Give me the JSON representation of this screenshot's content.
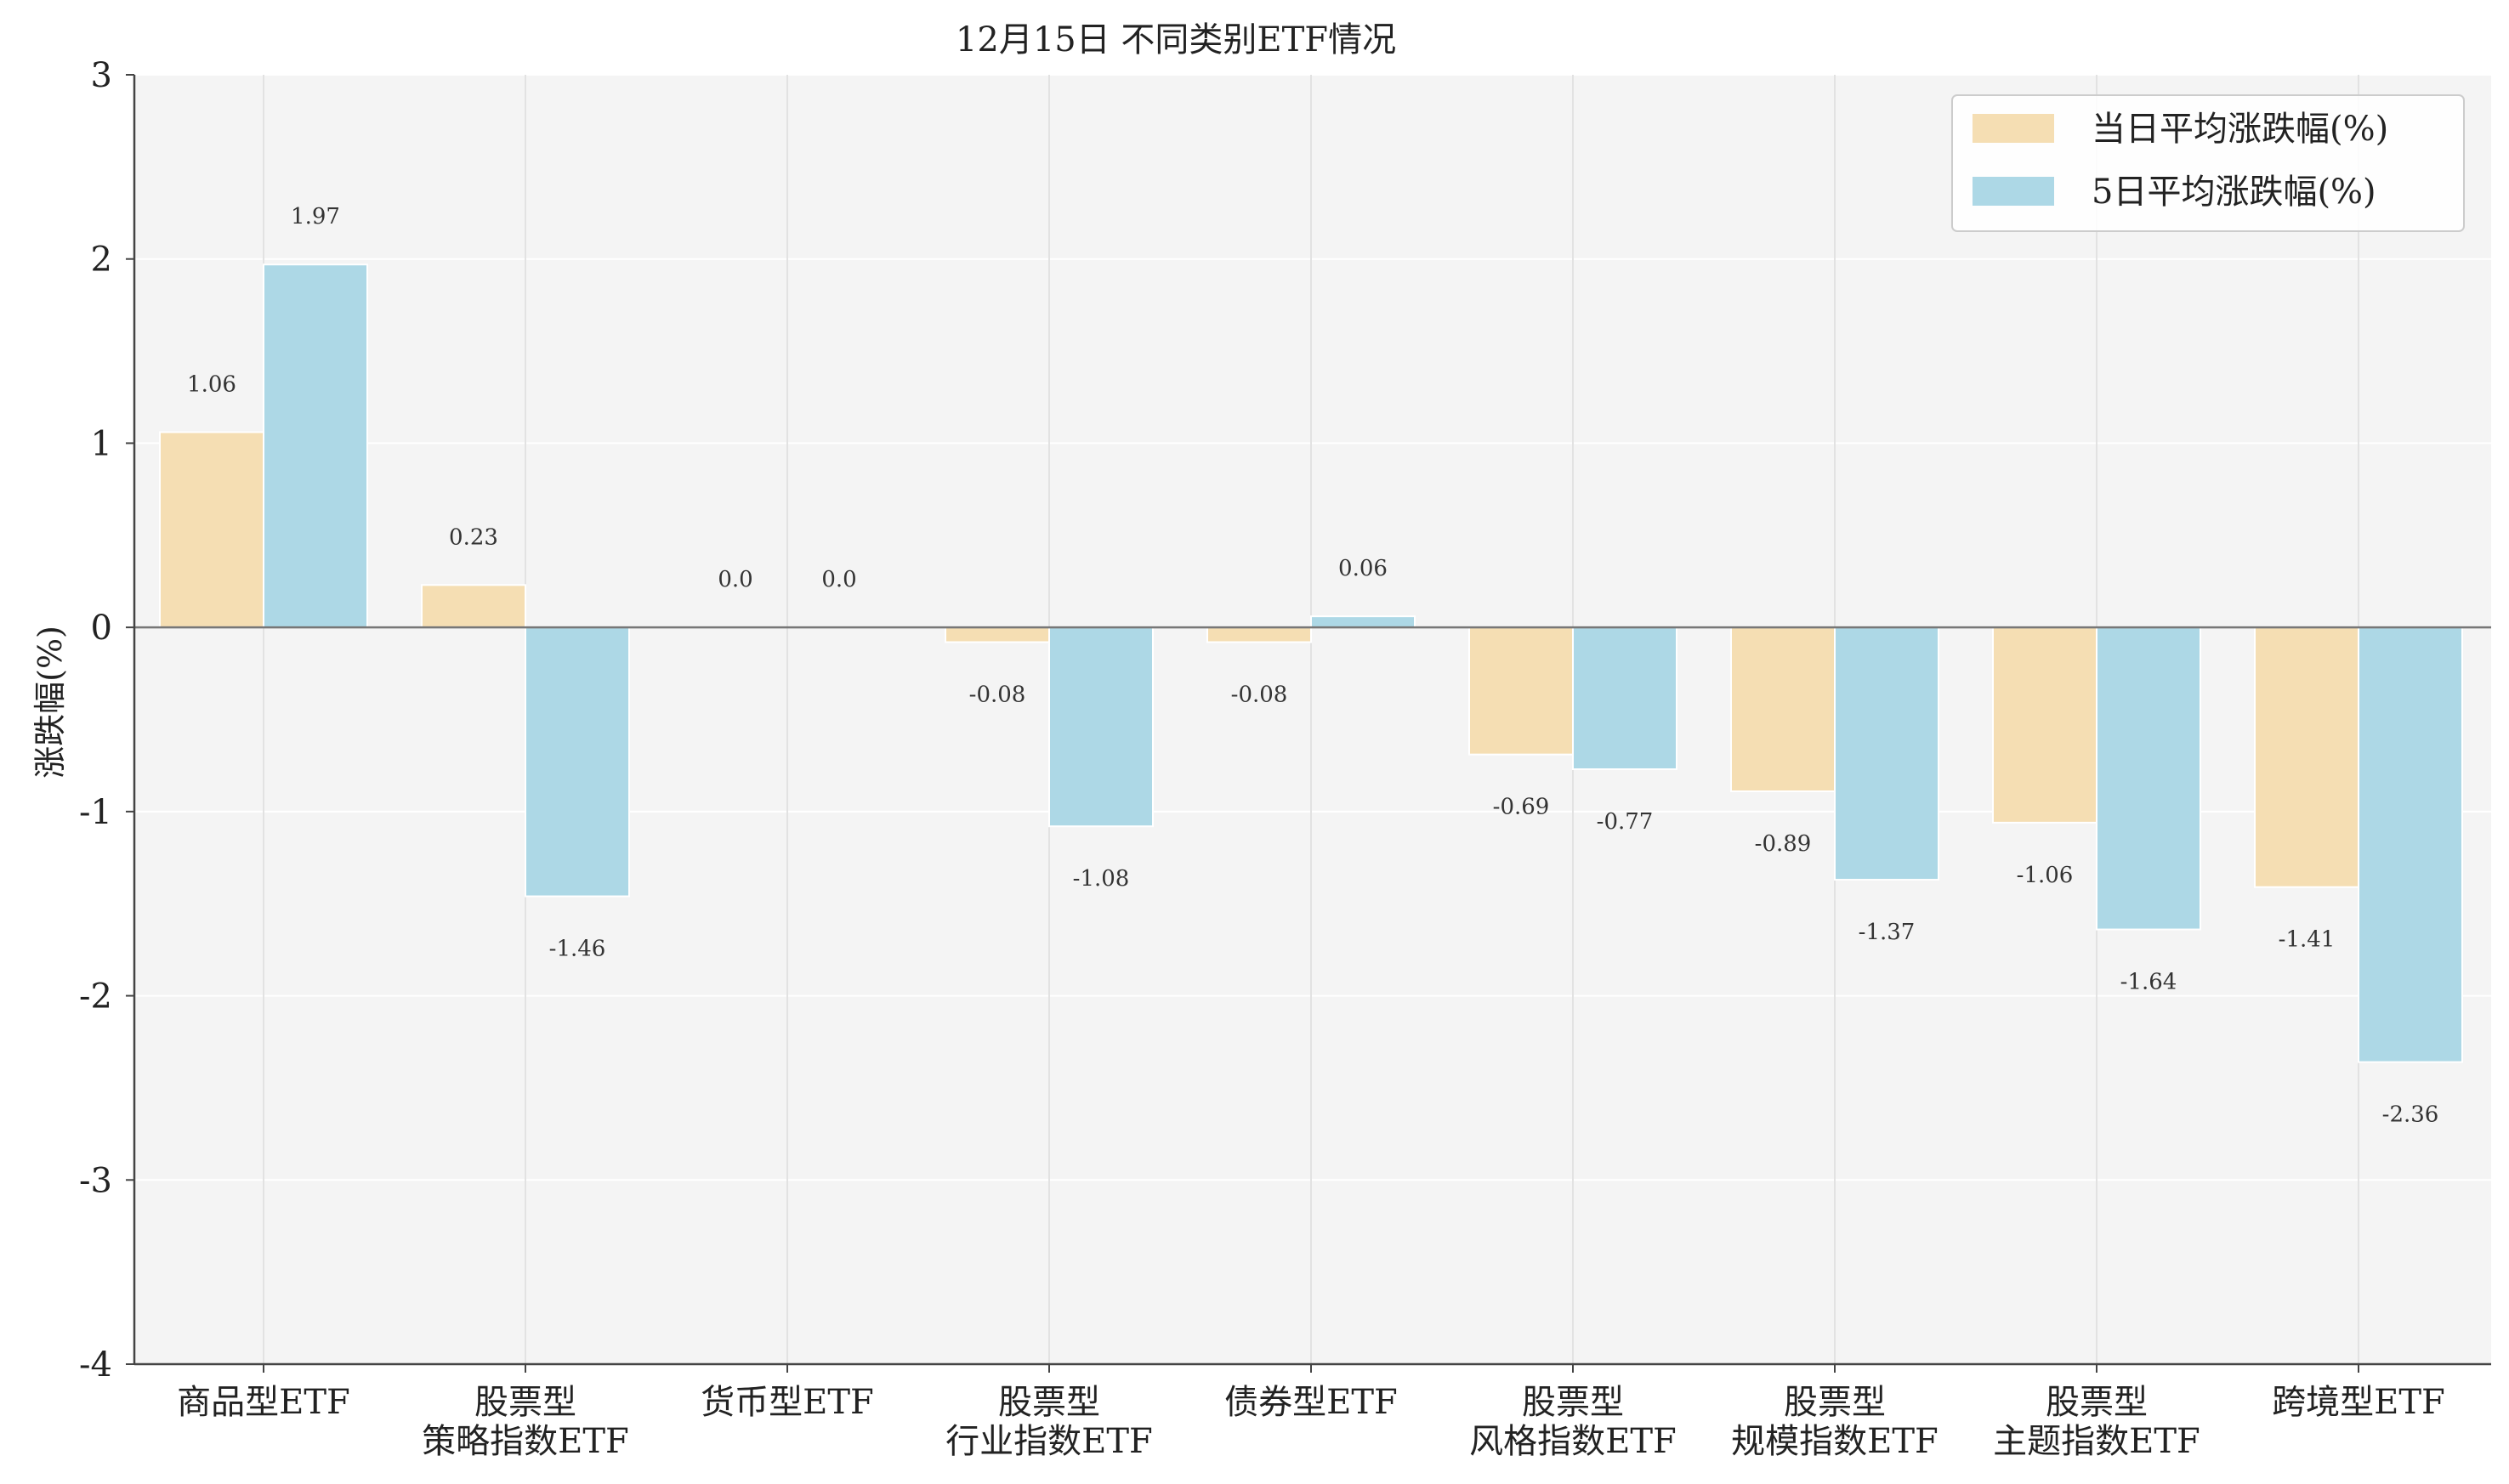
{
  "chart_data": {
    "type": "bar",
    "title": "12月15日 不同类别ETF情况",
    "xlabel": "",
    "ylabel": "涨跌幅(%)",
    "ylim": [
      -4,
      3
    ],
    "yticks": [
      "3",
      "2",
      "1",
      "0",
      "-1",
      "-2",
      "-3",
      "-4"
    ],
    "grid": true,
    "legend_position": "top-right",
    "categories": [
      [
        "商品型ETF"
      ],
      [
        "股票型",
        "策略指数ETF"
      ],
      [
        "货币型ETF"
      ],
      [
        "股票型",
        "行业指数ETF"
      ],
      [
        "债券型ETF"
      ],
      [
        "股票型",
        "风格指数ETF"
      ],
      [
        "股票型",
        "规模指数ETF"
      ],
      [
        "股票型",
        "主题指数ETF"
      ],
      [
        "跨境型ETF"
      ]
    ],
    "series": [
      {
        "name": "当日平均涨跌幅(%)",
        "color": "#f5deb3",
        "values": [
          1.06,
          0.23,
          0.0,
          -0.08,
          -0.08,
          -0.69,
          -0.89,
          -1.06,
          -1.41
        ],
        "labels": [
          "1.06",
          "0.23",
          "0.0",
          "-0.08",
          "-0.08",
          "-0.69",
          "-0.89",
          "-1.06",
          "-1.41"
        ]
      },
      {
        "name": "5日平均涨跌幅(%)",
        "color": "#add8e6",
        "values": [
          1.97,
          -1.46,
          0.0,
          -1.08,
          0.06,
          -0.77,
          -1.37,
          -1.64,
          -2.36
        ],
        "labels": [
          "1.97",
          "-1.46",
          "0.0",
          "-1.08",
          "0.06",
          "-0.77",
          "-1.37",
          "-1.64",
          "-2.36"
        ]
      }
    ]
  }
}
